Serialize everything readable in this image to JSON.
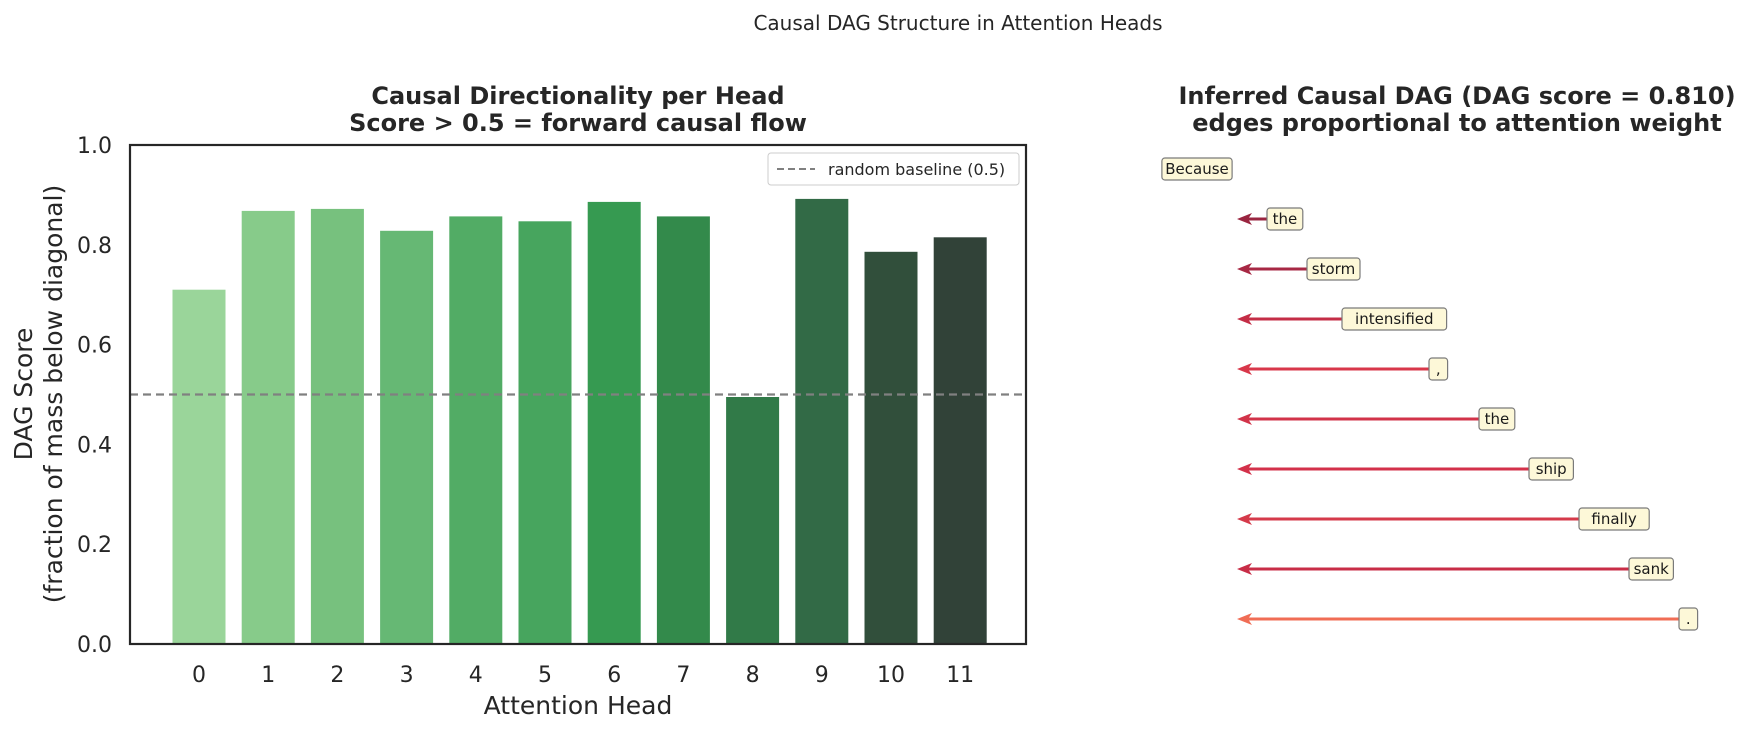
{
  "figure": {
    "title": "Causal DAG Structure in Attention Heads"
  },
  "chart_data": [
    {
      "type": "bar",
      "title_line1": "Causal Directionality per Head",
      "title_line2": "Score > 0.5 = forward causal flow",
      "xlabel": "Attention Head",
      "ylabel_line1": "DAG Score",
      "ylabel_line2": "(fraction of mass below diagonal)",
      "categories": [
        "0",
        "1",
        "2",
        "3",
        "4",
        "5",
        "6",
        "7",
        "8",
        "9",
        "10",
        "11"
      ],
      "values": [
        0.71,
        0.868,
        0.872,
        0.828,
        0.857,
        0.847,
        0.886,
        0.857,
        0.495,
        0.892,
        0.786,
        0.815
      ],
      "colors": [
        "#9ad59a",
        "#87cb8a",
        "#77c17e",
        "#66b874",
        "#52ac65",
        "#47a55e",
        "#369a51",
        "#338a4b",
        "#317a48",
        "#326a46",
        "#314f3b",
        "#314238"
      ],
      "ylim": [
        0,
        1.0
      ],
      "yticks": [
        "0.0",
        "0.2",
        "0.4",
        "0.6",
        "0.8",
        "1.0"
      ],
      "baseline": {
        "value": 0.5,
        "label": "random baseline (0.5)",
        "color": "#808080"
      },
      "legend_position": "upper right"
    },
    {
      "type": "diagram",
      "title_line1": "Inferred Causal DAG  (DAG score = 0.810)",
      "title_line2": "edges proportional to attention weight",
      "tokens": [
        "Because",
        "the",
        "storm",
        "intensified",
        ",",
        "the",
        "ship",
        "finally",
        "sank",
        "."
      ],
      "edge_colors": [
        "#9a2540",
        "#a72844",
        "#c42d46",
        "#d8374a",
        "#d23349",
        "#d3314a",
        "#d53a4a",
        "#c82d47",
        "#f06d55"
      ]
    }
  ]
}
